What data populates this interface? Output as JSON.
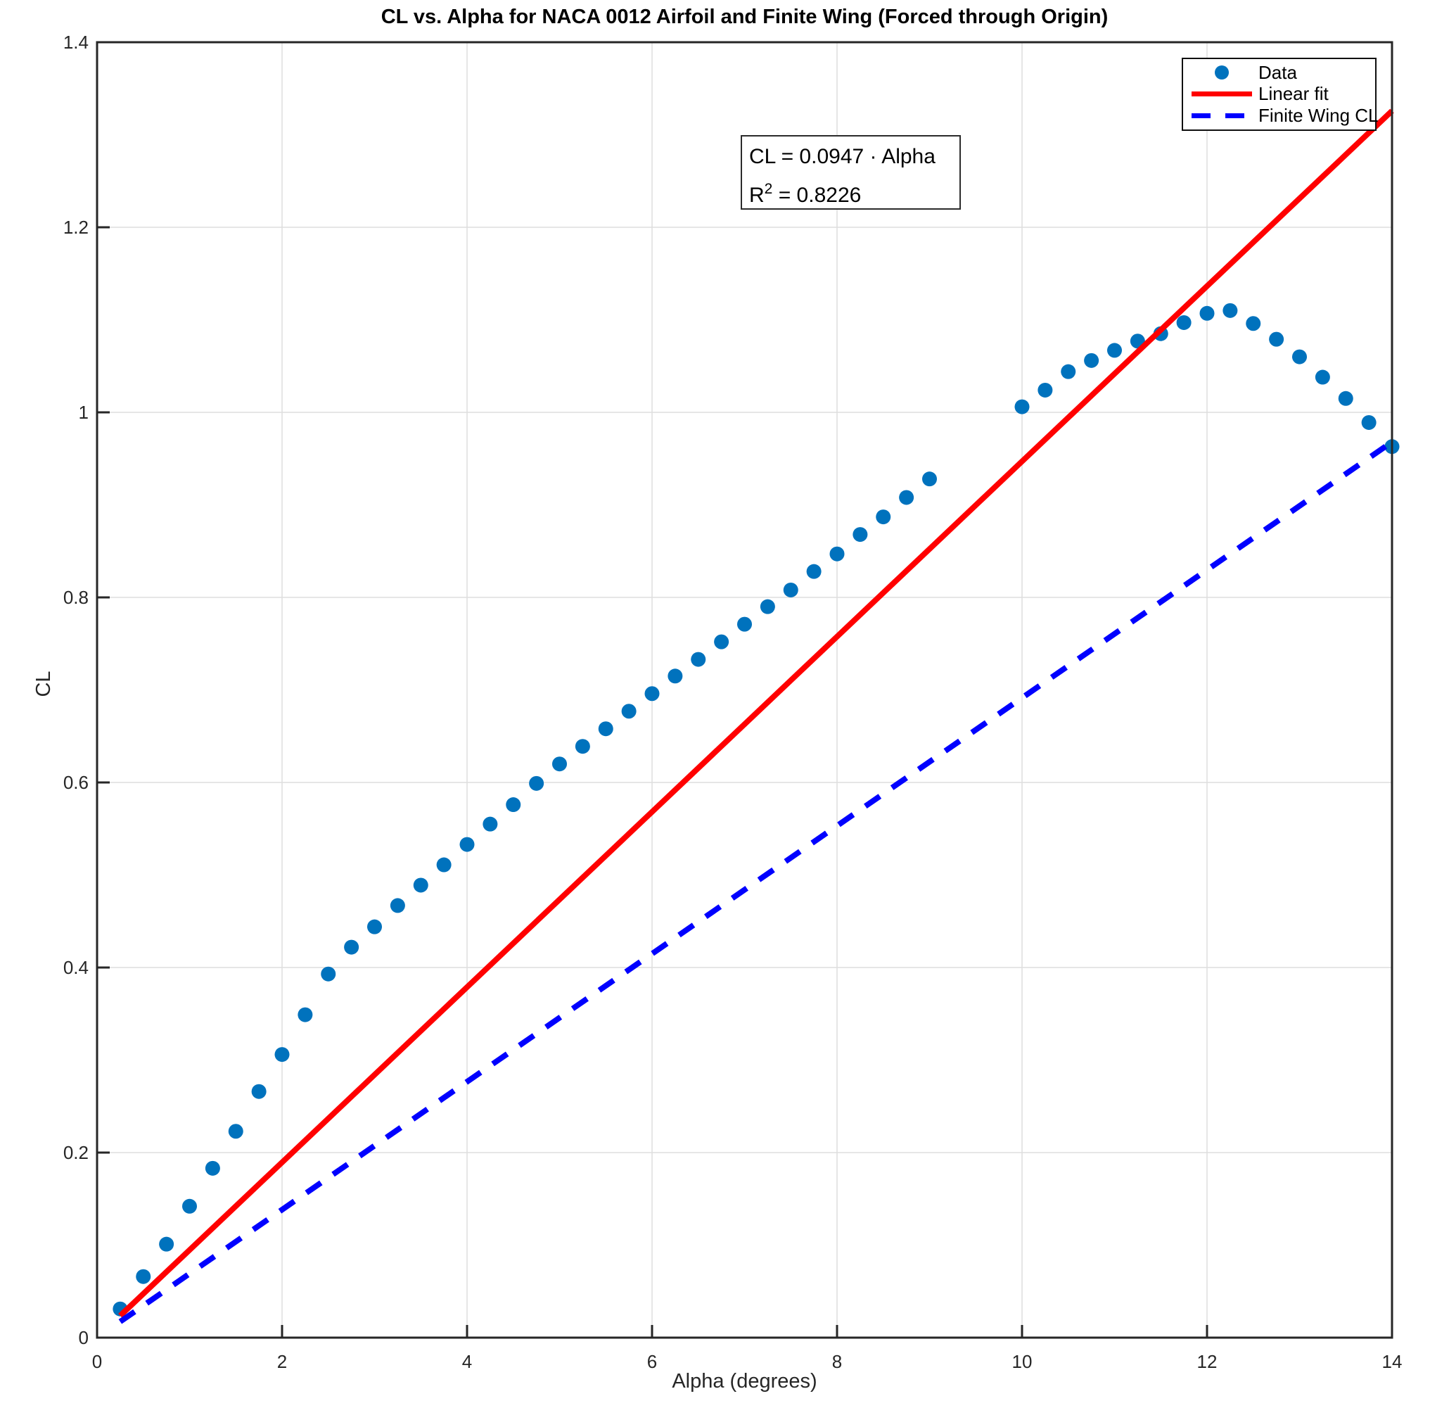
{
  "chart_data": {
    "type": "scatter",
    "title": "CL vs. Alpha for NACA 0012 Airfoil and Finite Wing (Forced through Origin)",
    "xlabel": "Alpha (degrees)",
    "ylabel": "CL",
    "xlim": [
      0,
      14
    ],
    "ylim": [
      0,
      1.4
    ],
    "xticks": [
      0,
      2,
      4,
      6,
      8,
      10,
      12,
      14
    ],
    "xtick_labels": [
      "0",
      "2",
      "4",
      "6",
      "8",
      "10",
      "12",
      "14"
    ],
    "yticks": [
      0,
      0.2,
      0.4,
      0.6,
      0.8,
      1.0,
      1.2,
      1.4
    ],
    "ytick_labels": [
      "0",
      "0.2",
      "0.4",
      "0.6",
      "0.8",
      "1",
      "1.2",
      "1.4"
    ],
    "grid": true,
    "grid_color": "#dedede",
    "axis_color": "#262626",
    "legend_position": "top-right",
    "annotation": {
      "equation": "CL = 0.0947 · Alpha",
      "r2_base": "R",
      "r2_sup": "2",
      "r2_rest": " = 0.8226"
    },
    "legend": {
      "entries": [
        {
          "label": "Data",
          "swatch": "marker",
          "color": "#0072BD"
        },
        {
          "label": "Linear fit",
          "swatch": "solid",
          "color": "#ff0000"
        },
        {
          "label": "Finite Wing CL",
          "swatch": "dashed",
          "color": "#0000ff"
        }
      ]
    },
    "series": [
      {
        "name": "Data",
        "type": "scatter",
        "color": "#0072BD",
        "marker_radius": 10.5,
        "points": [
          [
            0.25,
            0.031
          ],
          [
            0.5,
            0.066
          ],
          [
            0.75,
            0.101
          ],
          [
            1.0,
            0.142
          ],
          [
            1.25,
            0.183
          ],
          [
            1.5,
            0.223
          ],
          [
            1.75,
            0.266
          ],
          [
            2.0,
            0.306
          ],
          [
            2.25,
            0.349
          ],
          [
            2.5,
            0.393
          ],
          [
            2.75,
            0.422
          ],
          [
            3.0,
            0.444
          ],
          [
            3.25,
            0.467
          ],
          [
            3.5,
            0.489
          ],
          [
            3.75,
            0.511
          ],
          [
            4.0,
            0.533
          ],
          [
            4.25,
            0.555
          ],
          [
            4.5,
            0.576
          ],
          [
            4.75,
            0.599
          ],
          [
            5.0,
            0.62
          ],
          [
            5.25,
            0.639
          ],
          [
            5.5,
            0.658
          ],
          [
            5.75,
            0.677
          ],
          [
            6.0,
            0.696
          ],
          [
            6.25,
            0.715
          ],
          [
            6.5,
            0.733
          ],
          [
            6.75,
            0.752
          ],
          [
            7.0,
            0.771
          ],
          [
            7.25,
            0.79
          ],
          [
            7.5,
            0.808
          ],
          [
            7.75,
            0.828
          ],
          [
            8.0,
            0.847
          ],
          [
            8.25,
            0.868
          ],
          [
            8.5,
            0.887
          ],
          [
            8.75,
            0.908
          ],
          [
            9.0,
            0.928
          ],
          [
            10.0,
            1.006
          ],
          [
            10.25,
            1.024
          ],
          [
            10.5,
            1.044
          ],
          [
            10.75,
            1.056
          ],
          [
            11.0,
            1.067
          ],
          [
            11.25,
            1.077
          ],
          [
            11.5,
            1.085
          ],
          [
            11.75,
            1.097
          ],
          [
            12.0,
            1.107
          ],
          [
            12.25,
            1.11
          ],
          [
            12.5,
            1.096
          ],
          [
            12.75,
            1.079
          ],
          [
            13.0,
            1.06
          ],
          [
            13.25,
            1.038
          ],
          [
            13.5,
            1.015
          ],
          [
            13.75,
            0.989
          ],
          [
            14.0,
            0.963
          ]
        ]
      },
      {
        "name": "Linear fit",
        "type": "line",
        "color": "#ff0000",
        "slope": 0.0947,
        "r_squared": 0.8226,
        "x": [
          0.25,
          14
        ],
        "y": [
          0.0237,
          1.3258
        ]
      },
      {
        "name": "Finite Wing CL",
        "type": "line",
        "dashed": true,
        "color": "#0000ff",
        "slope": 0.0692,
        "x": [
          0.25,
          14
        ],
        "y": [
          0.0173,
          0.968
        ]
      }
    ]
  }
}
